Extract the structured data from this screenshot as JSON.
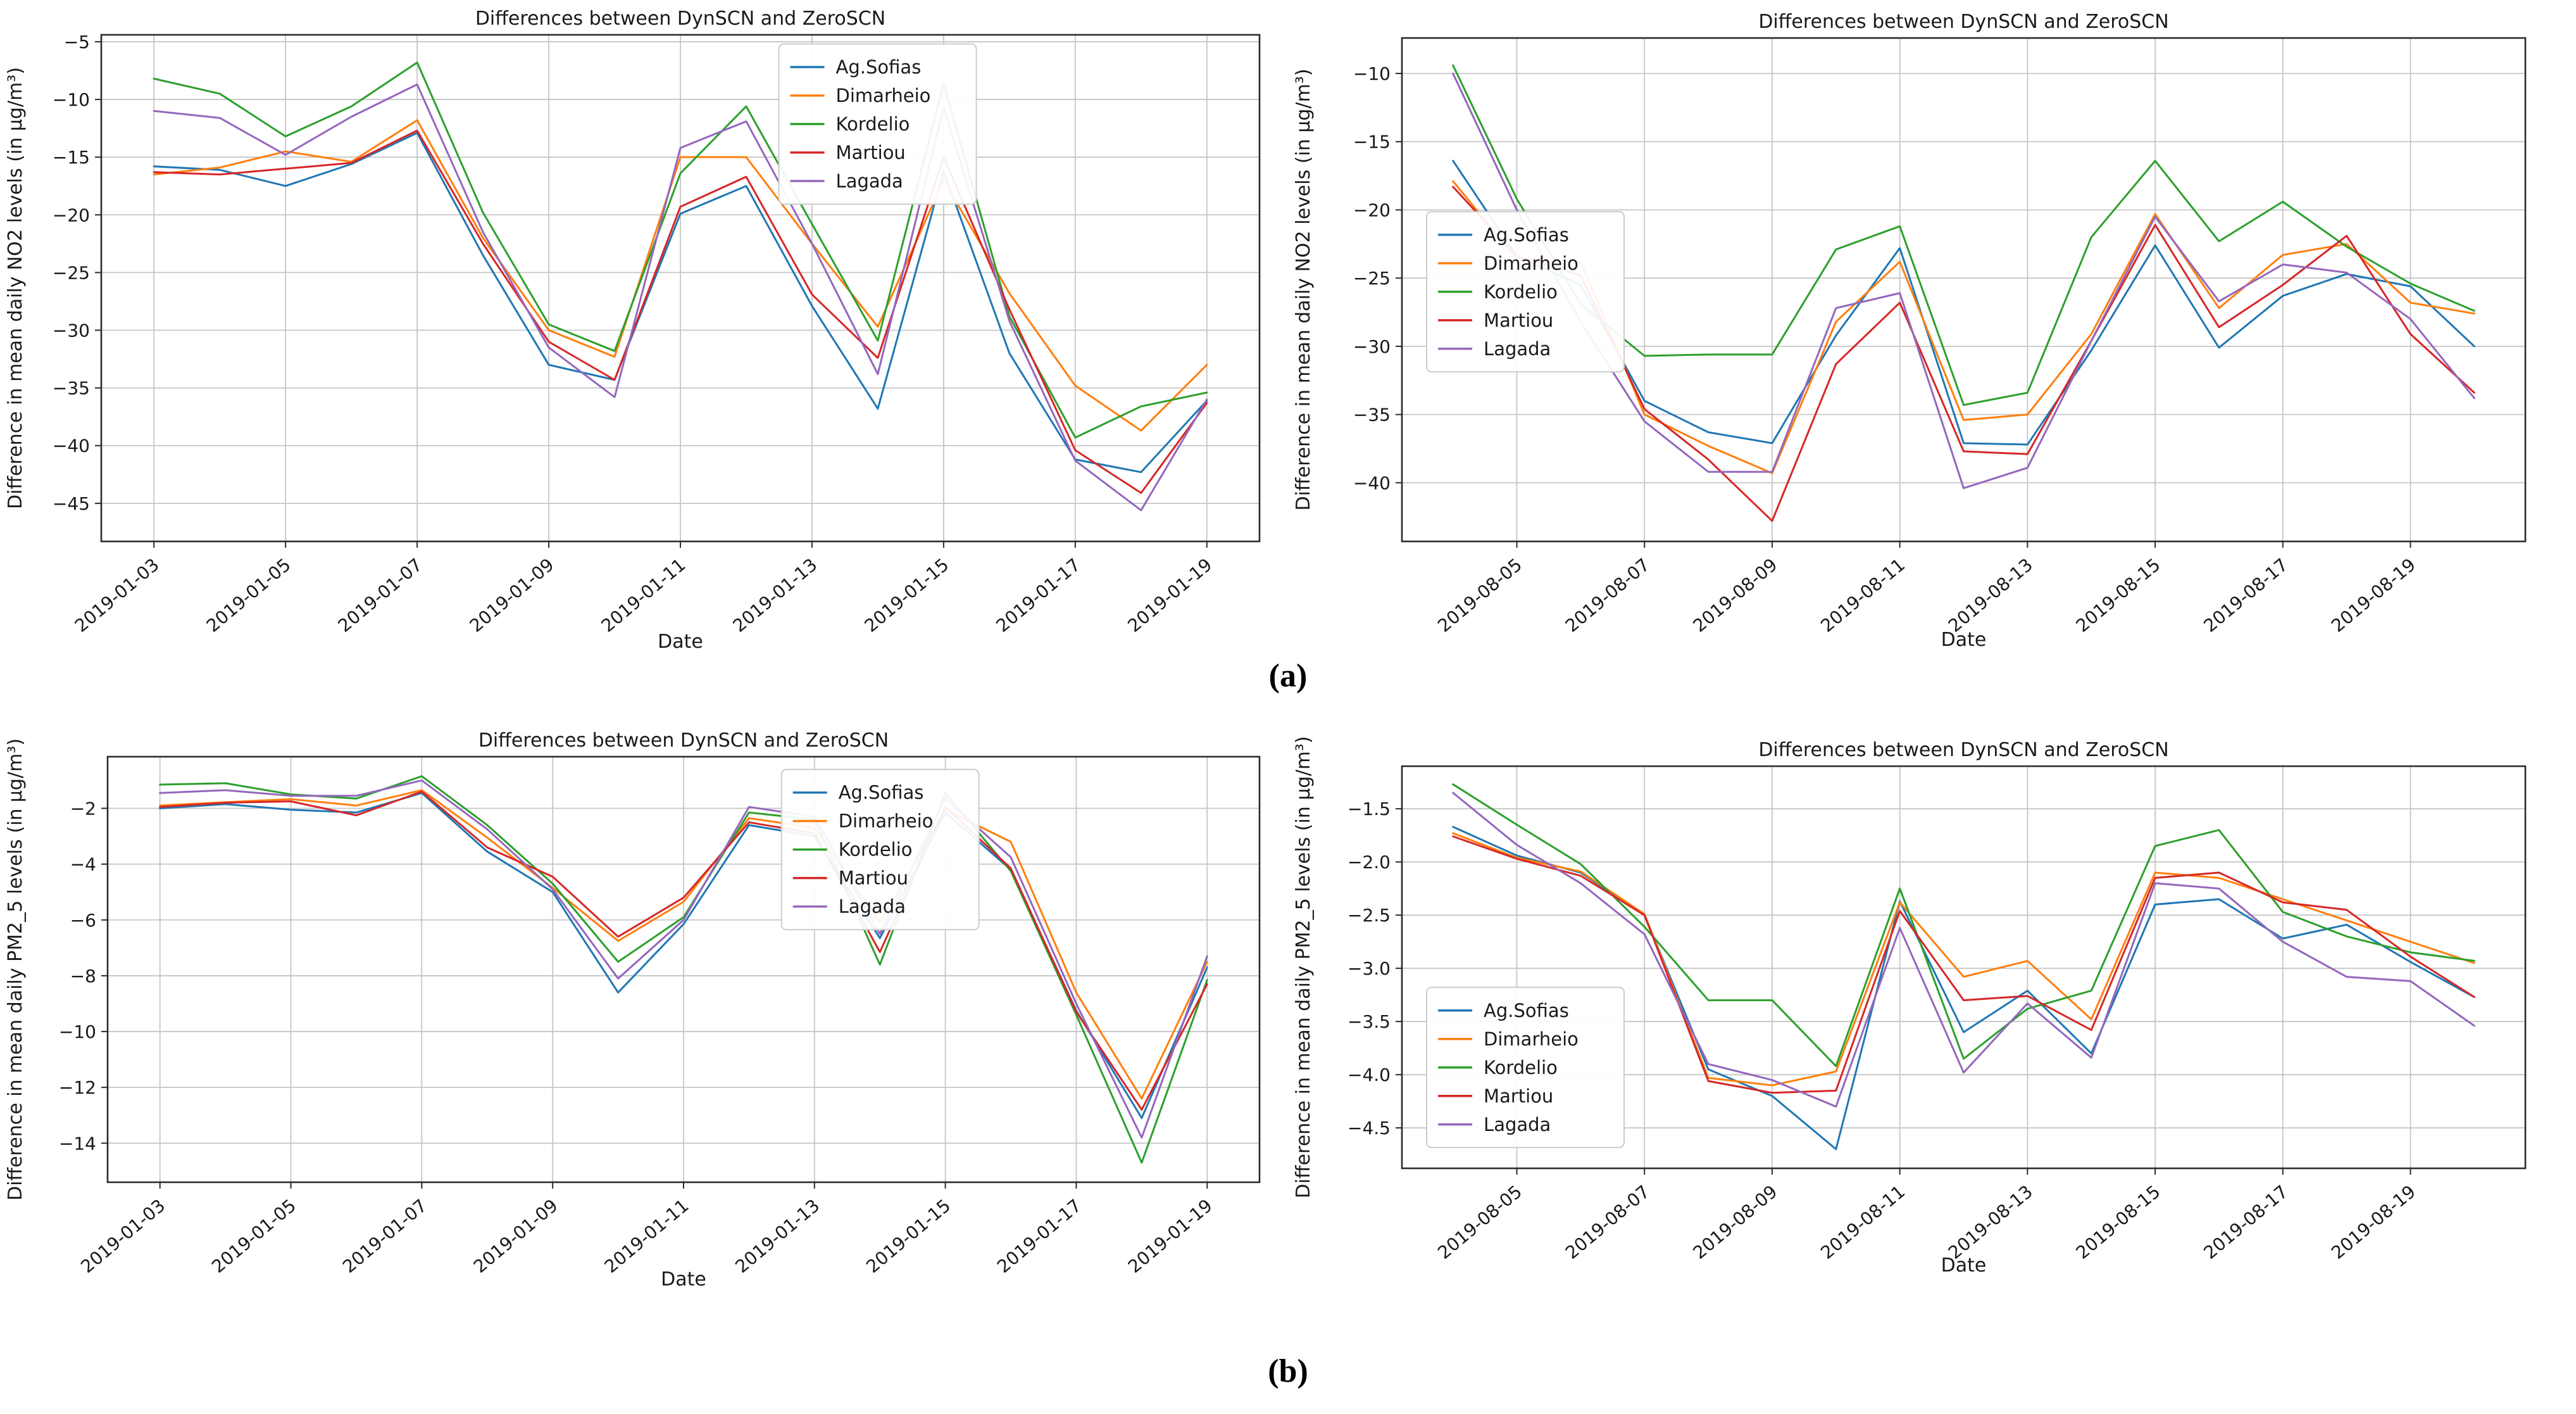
{
  "figure": {
    "captions": {
      "a": "(a)",
      "b": "(b)"
    },
    "background": "#ffffff",
    "text_color": "#1a1a1a",
    "grid_color": "#c6c6c6",
    "spine_color": "#2b2b2b"
  },
  "series_colors": {
    "Ag.Sofias": "#1f77b4",
    "Dimarheio": "#ff7f0e",
    "Kordelio": "#2ca02c",
    "Martiou": "#d62728",
    "Lagada": "#9467bd"
  },
  "chart_data": [
    {
      "type": "line",
      "id": "no2-january",
      "title": "Differences between DynSCN and ZeroSCN",
      "xlabel": "Date",
      "ylabel": "Difference in mean daily NO2 levels (in µg/m³)",
      "x": [
        "2019-01-03",
        "2019-01-04",
        "2019-01-05",
        "2019-01-06",
        "2019-01-07",
        "2019-01-08",
        "2019-01-09",
        "2019-01-10",
        "2019-01-11",
        "2019-01-12",
        "2019-01-13",
        "2019-01-14",
        "2019-01-15",
        "2019-01-16",
        "2019-01-17",
        "2019-01-18",
        "2019-01-19"
      ],
      "xtick_indices": [
        0,
        2,
        4,
        6,
        8,
        10,
        12,
        14,
        16
      ],
      "xtick_labels": [
        "2019-01-03",
        "2019-01-05",
        "2019-01-07",
        "2019-01-09",
        "2019-01-11",
        "2019-01-13",
        "2019-01-15",
        "2019-01-17",
        "2019-01-19"
      ],
      "ytick_values": [
        -5,
        -10,
        -15,
        -20,
        -25,
        -30,
        -35,
        -40,
        -45
      ],
      "ytick_labels": [
        "−5",
        "−10",
        "−15",
        "−20",
        "−25",
        "−30",
        "−35",
        "−40",
        "−45"
      ],
      "ylim": [
        -48.3,
        -4.4
      ],
      "xlim": [
        -0.8,
        16.8
      ],
      "grid": true,
      "legend_position": "upper-center-right",
      "legend_frac": {
        "fx": 0.585,
        "fy": 0.018
      },
      "series": [
        {
          "name": "Ag.Sofias",
          "values": [
            -15.8,
            -16.1,
            -17.5,
            -15.6,
            -12.9,
            -23.5,
            -33.0,
            -34.3,
            -19.9,
            -17.5,
            -27.9,
            -36.8,
            -16.2,
            -32.0,
            -41.2,
            -42.3,
            -36.1
          ]
        },
        {
          "name": "Dimarheio",
          "values": [
            -16.5,
            -15.9,
            -14.5,
            -15.4,
            -11.8,
            -22.0,
            -30.0,
            -32.3,
            -15.0,
            -15.0,
            -22.5,
            -29.7,
            -17.0,
            -26.8,
            -34.8,
            -38.7,
            -33.0
          ]
        },
        {
          "name": "Kordelio",
          "values": [
            -8.2,
            -9.5,
            -13.2,
            -10.6,
            -6.8,
            -19.8,
            -29.5,
            -31.8,
            -16.4,
            -10.6,
            -20.8,
            -30.9,
            -8.6,
            -28.8,
            -39.3,
            -36.6,
            -35.4
          ]
        },
        {
          "name": "Martiou",
          "values": [
            -16.3,
            -16.5,
            -16.0,
            -15.5,
            -12.7,
            -22.5,
            -31.0,
            -34.3,
            -19.3,
            -16.7,
            -26.9,
            -32.4,
            -15.0,
            -28.2,
            -40.4,
            -44.1,
            -36.3
          ]
        },
        {
          "name": "Lagada",
          "values": [
            -11.0,
            -11.6,
            -14.8,
            -11.5,
            -8.7,
            -21.5,
            -31.5,
            -35.8,
            -14.2,
            -11.9,
            -22.5,
            -33.8,
            -10.7,
            -29.2,
            -41.3,
            -45.6,
            -36.0
          ]
        }
      ]
    },
    {
      "type": "line",
      "id": "no2-august",
      "title": "Differences between DynSCN and ZeroSCN",
      "xlabel": "Date",
      "ylabel": "Difference in mean daily NO2 levels (in µg/m³)",
      "x": [
        "2019-08-04",
        "2019-08-05",
        "2019-08-06",
        "2019-08-07",
        "2019-08-08",
        "2019-08-09",
        "2019-08-10",
        "2019-08-11",
        "2019-08-12",
        "2019-08-13",
        "2019-08-14",
        "2019-08-15",
        "2019-08-16",
        "2019-08-17",
        "2019-08-18",
        "2019-08-19",
        "2019-08-20"
      ],
      "xtick_indices": [
        1,
        3,
        5,
        7,
        9,
        11,
        13,
        15
      ],
      "xtick_labels": [
        "2019-08-05",
        "2019-08-07",
        "2019-08-09",
        "2019-08-11",
        "2019-08-13",
        "2019-08-15",
        "2019-08-17",
        "2019-08-19"
      ],
      "ytick_values": [
        -10,
        -15,
        -20,
        -25,
        -30,
        -35,
        -40
      ],
      "ytick_labels": [
        "−10",
        "−15",
        "−20",
        "−25",
        "−30",
        "−35",
        "−40"
      ],
      "ylim": [
        -44.3,
        -7.4
      ],
      "xlim": [
        -0.8,
        16.8
      ],
      "grid": true,
      "legend_position": "center-left",
      "legend_frac": {
        "fx": 0.022,
        "fy": 0.345
      },
      "series": [
        {
          "name": "Ag.Sofias",
          "values": [
            -16.4,
            -23.4,
            -25.5,
            -34.0,
            -36.3,
            -37.1,
            -29.2,
            -22.8,
            -37.1,
            -37.2,
            -30.3,
            -22.6,
            -30.1,
            -26.3,
            -24.7,
            -25.6,
            -30.0
          ]
        },
        {
          "name": "Dimarheio",
          "values": [
            -17.9,
            -23.6,
            -23.8,
            -35.0,
            -37.3,
            -39.3,
            -28.2,
            -23.8,
            -35.4,
            -35.0,
            -29.1,
            -20.3,
            -27.2,
            -23.3,
            -22.5,
            -26.8,
            -27.6
          ]
        },
        {
          "name": "Kordelio",
          "values": [
            -9.4,
            -19.2,
            -26.9,
            -30.7,
            -30.6,
            -30.6,
            -22.9,
            -21.2,
            -34.3,
            -33.4,
            -22.0,
            -16.4,
            -22.3,
            -19.4,
            -22.7,
            -25.4,
            -27.4
          ]
        },
        {
          "name": "Martiou",
          "values": [
            -18.3,
            -23.4,
            -24.8,
            -34.6,
            -38.3,
            -42.8,
            -31.3,
            -26.8,
            -37.7,
            -37.9,
            -29.6,
            -21.1,
            -28.6,
            -25.5,
            -21.9,
            -29.1,
            -33.4
          ]
        },
        {
          "name": "Lagada",
          "values": [
            -10.0,
            -20.0,
            -28.2,
            -35.5,
            -39.2,
            -39.2,
            -27.2,
            -26.1,
            -40.4,
            -38.9,
            -29.6,
            -20.5,
            -26.7,
            -24.0,
            -24.6,
            -28.0,
            -33.8
          ]
        }
      ]
    },
    {
      "type": "line",
      "id": "pm25-january",
      "title": "Differences between DynSCN and ZeroSCN",
      "xlabel": "Date",
      "ylabel": "Difference in mean daily PM2_5 levels (in µg/m³)",
      "x": [
        "2019-01-03",
        "2019-01-04",
        "2019-01-05",
        "2019-01-06",
        "2019-01-07",
        "2019-01-08",
        "2019-01-09",
        "2019-01-10",
        "2019-01-11",
        "2019-01-12",
        "2019-01-13",
        "2019-01-14",
        "2019-01-15",
        "2019-01-16",
        "2019-01-17",
        "2019-01-18",
        "2019-01-19"
      ],
      "xtick_indices": [
        0,
        2,
        4,
        6,
        8,
        10,
        12,
        14,
        16
      ],
      "xtick_labels": [
        "2019-01-03",
        "2019-01-05",
        "2019-01-07",
        "2019-01-09",
        "2019-01-11",
        "2019-01-13",
        "2019-01-15",
        "2019-01-17",
        "2019-01-19"
      ],
      "ytick_values": [
        -2,
        -4,
        -6,
        -8,
        -10,
        -12,
        -14
      ],
      "ytick_labels": [
        "−2",
        "−4",
        "−6",
        "−8",
        "−10",
        "−12",
        "−14"
      ],
      "ylim": [
        -15.4,
        -0.15
      ],
      "xlim": [
        -0.8,
        16.8
      ],
      "grid": true,
      "legend_position": "upper-center-right",
      "legend_frac": {
        "fx": 0.585,
        "fy": 0.03
      },
      "series": [
        {
          "name": "Ag.Sofias",
          "values": [
            -2.0,
            -1.85,
            -2.05,
            -2.15,
            -1.45,
            -3.55,
            -5.0,
            -8.6,
            -6.15,
            -2.6,
            -3.0,
            -6.65,
            -2.15,
            -4.2,
            -9.25,
            -13.1,
            -7.7
          ]
        },
        {
          "name": "Dimarheio",
          "values": [
            -1.9,
            -1.78,
            -1.67,
            -1.9,
            -1.35,
            -3.05,
            -4.85,
            -6.75,
            -5.35,
            -2.35,
            -2.7,
            -6.1,
            -2.05,
            -3.2,
            -8.6,
            -12.4,
            -7.5
          ]
        },
        {
          "name": "Kordelio",
          "values": [
            -1.15,
            -1.1,
            -1.5,
            -1.65,
            -0.85,
            -2.6,
            -4.7,
            -7.5,
            -5.9,
            -2.15,
            -2.4,
            -7.6,
            -1.45,
            -4.25,
            -9.4,
            -14.7,
            -8.15
          ]
        },
        {
          "name": "Martiou",
          "values": [
            -1.95,
            -1.8,
            -1.75,
            -2.25,
            -1.4,
            -3.4,
            -4.45,
            -6.6,
            -5.2,
            -2.5,
            -2.9,
            -7.15,
            -1.95,
            -4.15,
            -9.3,
            -12.8,
            -8.3
          ]
        },
        {
          "name": "Lagada",
          "values": [
            -1.45,
            -1.35,
            -1.55,
            -1.55,
            -1.0,
            -2.75,
            -4.9,
            -8.1,
            -6.0,
            -1.95,
            -2.3,
            -6.5,
            -1.65,
            -3.75,
            -9.0,
            -13.8,
            -7.3
          ]
        }
      ]
    },
    {
      "type": "line",
      "id": "pm25-august",
      "title": "Differences between DynSCN and ZeroSCN",
      "xlabel": "Date",
      "ylabel": "Difference in mean daily PM2_5 levels (in µg/m³)",
      "x": [
        "2019-08-04",
        "2019-08-05",
        "2019-08-06",
        "2019-08-07",
        "2019-08-08",
        "2019-08-09",
        "2019-08-10",
        "2019-08-11",
        "2019-08-12",
        "2019-08-13",
        "2019-08-14",
        "2019-08-15",
        "2019-08-16",
        "2019-08-17",
        "2019-08-18",
        "2019-08-19",
        "2019-08-20"
      ],
      "xtick_indices": [
        1,
        3,
        5,
        7,
        9,
        11,
        13,
        15
      ],
      "xtick_labels": [
        "2019-08-05",
        "2019-08-07",
        "2019-08-09",
        "2019-08-11",
        "2019-08-13",
        "2019-08-15",
        "2019-08-17",
        "2019-08-19"
      ],
      "ytick_values": [
        -1.5,
        -2.0,
        -2.5,
        -3.0,
        -3.5,
        -4.0,
        -4.5
      ],
      "ytick_labels": [
        "−1.5",
        "−2.0",
        "−2.5",
        "−3.0",
        "−3.5",
        "−4.0",
        "−4.5"
      ],
      "ylim": [
        -4.88,
        -1.1
      ],
      "xlim": [
        -0.8,
        16.8
      ],
      "grid": true,
      "legend_position": "center-left",
      "legend_frac": {
        "fx": 0.022,
        "fy": 0.55
      },
      "series": [
        {
          "name": "Ag.Sofias",
          "values": [
            -1.67,
            -1.94,
            -2.1,
            -2.5,
            -3.95,
            -4.2,
            -4.7,
            -2.37,
            -3.6,
            -3.21,
            -3.8,
            -2.4,
            -2.35,
            -2.72,
            -2.59,
            -2.94,
            -3.27
          ]
        },
        {
          "name": "Dimarheio",
          "values": [
            -1.73,
            -1.96,
            -2.09,
            -2.49,
            -4.03,
            -4.1,
            -3.97,
            -2.38,
            -3.08,
            -2.93,
            -3.48,
            -2.1,
            -2.15,
            -2.35,
            -2.55,
            -2.75,
            -2.95
          ]
        },
        {
          "name": "Kordelio",
          "values": [
            -1.27,
            -1.65,
            -2.02,
            -2.61,
            -3.3,
            -3.3,
            -3.92,
            -2.25,
            -3.85,
            -3.38,
            -3.21,
            -1.85,
            -1.7,
            -2.47,
            -2.7,
            -2.85,
            -2.93
          ]
        },
        {
          "name": "Martiou",
          "values": [
            -1.76,
            -1.97,
            -2.13,
            -2.5,
            -4.06,
            -4.17,
            -4.15,
            -2.46,
            -3.3,
            -3.26,
            -3.58,
            -2.15,
            -2.1,
            -2.38,
            -2.45,
            -2.89,
            -3.27
          ]
        },
        {
          "name": "Lagada",
          "values": [
            -1.35,
            -1.84,
            -2.2,
            -2.68,
            -3.9,
            -4.05,
            -4.3,
            -2.62,
            -3.98,
            -3.33,
            -3.84,
            -2.2,
            -2.25,
            -2.75,
            -3.08,
            -3.12,
            -3.54
          ]
        }
      ]
    }
  ]
}
